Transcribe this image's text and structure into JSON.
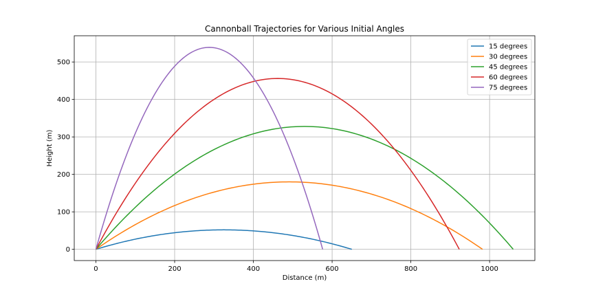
{
  "chart_data": {
    "type": "line",
    "title": "Cannonball Trajectories for Various Initial Angles",
    "xlabel": "Distance (m)",
    "ylabel": "Height (m)",
    "xlim": [
      -55,
      1115
    ],
    "ylim": [
      -30,
      570
    ],
    "xticks": [
      0,
      200,
      400,
      600,
      800,
      1000
    ],
    "yticks": [
      0,
      100,
      200,
      300,
      400,
      500
    ],
    "grid": true,
    "legend_position": "top-right",
    "series": [
      {
        "name": "15 degrees",
        "angle_deg": 15,
        "range": 650,
        "max_height": 52,
        "color": "#1f77b4"
      },
      {
        "name": "30 degrees",
        "angle_deg": 30,
        "range": 982,
        "max_height": 180,
        "color": "#ff7f0e"
      },
      {
        "name": "45 degrees",
        "angle_deg": 45,
        "range": 1060,
        "max_height": 328,
        "color": "#2ca02c"
      },
      {
        "name": "60 degrees",
        "angle_deg": 60,
        "range": 923,
        "max_height": 456,
        "color": "#d62728"
      },
      {
        "name": "75 degrees",
        "angle_deg": 75,
        "range": 576,
        "max_height": 539,
        "color": "#9467bd"
      }
    ]
  }
}
